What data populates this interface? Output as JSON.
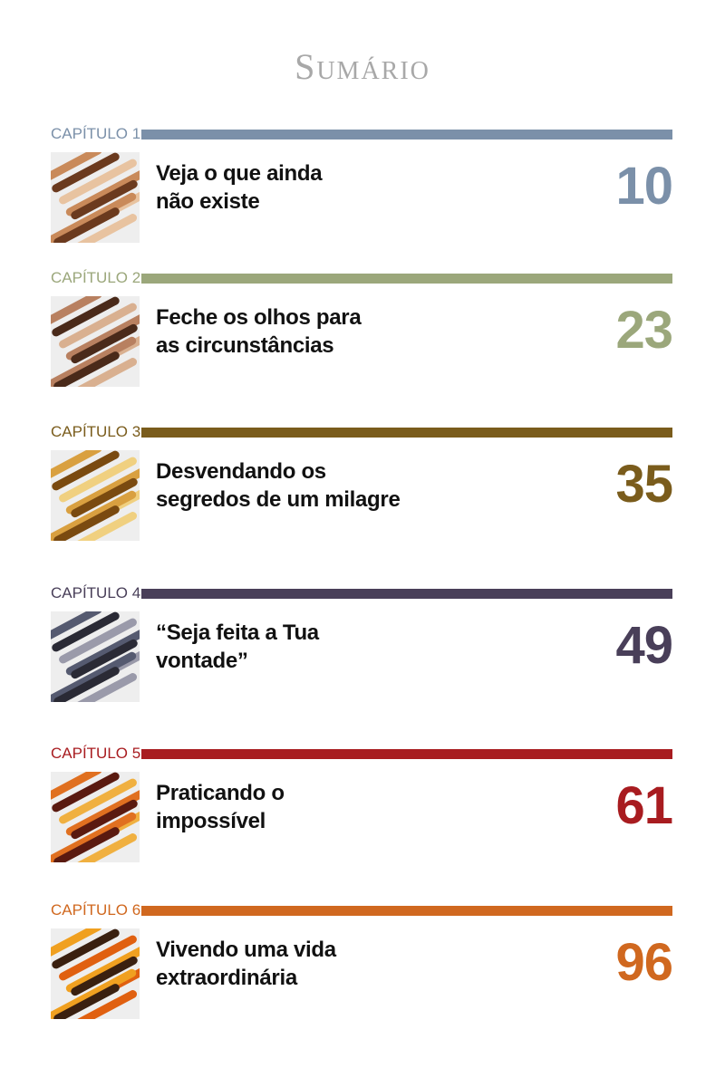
{
  "title": "Sumário",
  "chapters": [
    {
      "label": "CAPÍTULO 1",
      "title_line1": "Veja o que ainda",
      "title_line2": "não existe",
      "page": "10",
      "color": "#7b90a9",
      "image": "eye-painting"
    },
    {
      "label": "CAPÍTULO 2",
      "title_line1": "Feche os olhos para",
      "title_line2": "as circunstâncias",
      "page": "23",
      "color": "#9ba77b",
      "image": "praying-woman"
    },
    {
      "label": "CAPÍTULO 3",
      "title_line1": "Desvendando os",
      "title_line2": "segredos de um milagre",
      "page": "35",
      "color": "#7a5c1c",
      "image": "hands-light"
    },
    {
      "label": "CAPÍTULO 4",
      "title_line1": "“Seja feita a Tua",
      "title_line2": "vontade”",
      "page": "49",
      "color": "#493f59",
      "image": "person-praying"
    },
    {
      "label": "CAPÍTULO 5",
      "title_line1": "Praticando o",
      "title_line2": "impossível",
      "page": "61",
      "color": "#a81c20",
      "image": "man-fire"
    },
    {
      "label": "CAPÍTULO 6",
      "title_line1": "Vivendo uma vida",
      "title_line2": "extraordinária",
      "page": "96",
      "color": "#d0681f",
      "image": "sunset-arms-raised"
    }
  ]
}
